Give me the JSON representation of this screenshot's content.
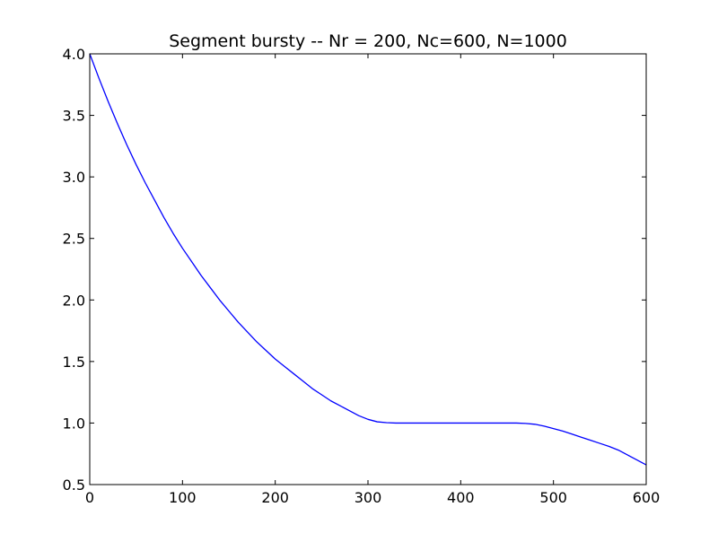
{
  "chart_data": {
    "type": "line",
    "title": "Segment bursty -- Nr = 200, Nc=600, N=1000",
    "xlabel": "",
    "ylabel": "",
    "xlim": [
      0,
      600
    ],
    "ylim": [
      0.5,
      4.0
    ],
    "x_ticks": [
      {
        "value": 0,
        "label": "0"
      },
      {
        "value": 100,
        "label": "100"
      },
      {
        "value": 200,
        "label": "200"
      },
      {
        "value": 300,
        "label": "300"
      },
      {
        "value": 400,
        "label": "400"
      },
      {
        "value": 500,
        "label": "500"
      },
      {
        "value": 600,
        "label": "600"
      }
    ],
    "y_ticks": [
      {
        "value": 0.5,
        "label": "0.5"
      },
      {
        "value": 1.0,
        "label": "1.0"
      },
      {
        "value": 1.5,
        "label": "1.5"
      },
      {
        "value": 2.0,
        "label": "2.0"
      },
      {
        "value": 2.5,
        "label": "2.5"
      },
      {
        "value": 3.0,
        "label": "3.0"
      },
      {
        "value": 3.5,
        "label": "3.5"
      },
      {
        "value": 4.0,
        "label": "4.0"
      }
    ],
    "grid": false,
    "legend": "none",
    "series": [
      {
        "color": "#0000ff",
        "x": [
          0,
          10,
          20,
          30,
          40,
          50,
          60,
          70,
          80,
          90,
          100,
          110,
          120,
          130,
          140,
          150,
          160,
          170,
          180,
          190,
          200,
          210,
          220,
          230,
          240,
          250,
          260,
          270,
          280,
          290,
          300,
          310,
          320,
          330,
          340,
          350,
          360,
          380,
          400,
          420,
          440,
          460,
          470,
          480,
          490,
          500,
          510,
          520,
          530,
          540,
          550,
          560,
          570,
          580,
          590,
          600
        ],
        "y": [
          4.0,
          3.8,
          3.61,
          3.43,
          3.26,
          3.1,
          2.95,
          2.81,
          2.67,
          2.54,
          2.42,
          2.31,
          2.2,
          2.1,
          2.0,
          1.91,
          1.82,
          1.74,
          1.66,
          1.59,
          1.52,
          1.46,
          1.4,
          1.34,
          1.28,
          1.23,
          1.18,
          1.14,
          1.1,
          1.06,
          1.03,
          1.01,
          1.003,
          1.0,
          1.0,
          1.0,
          1.0,
          1.0,
          1.0,
          1.0,
          1.0,
          1.0,
          0.997,
          0.99,
          0.975,
          0.955,
          0.935,
          0.91,
          0.885,
          0.86,
          0.835,
          0.81,
          0.78,
          0.74,
          0.7,
          0.66
        ]
      }
    ]
  }
}
